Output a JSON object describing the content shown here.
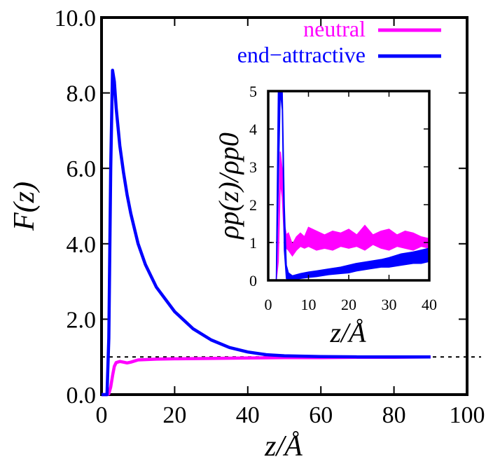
{
  "chart_data": [
    {
      "type": "line",
      "xlabel": "z/Å",
      "ylabel": "F(z)",
      "xlim": [
        0,
        100
      ],
      "ylim": [
        0,
        10
      ],
      "x_ticks": [
        "0",
        "20",
        "40",
        "60",
        "80",
        "100"
      ],
      "y_ticks": [
        "0.0",
        "2.0",
        "4.0",
        "6.0",
        "8.0",
        "10.0"
      ],
      "x_tick_values": [
        0,
        20,
        40,
        60,
        80,
        100
      ],
      "y_tick_values": [
        0,
        2,
        4,
        6,
        8,
        10
      ],
      "reference_line": {
        "y": 1,
        "style": "dashed",
        "color": "#000000"
      },
      "legend_position": "top-right",
      "series": [
        {
          "name": "neutral",
          "color": "#ff00ff",
          "x": [
            0,
            1.5,
            2.0,
            2.5,
            3.0,
            3.5,
            4.0,
            5.0,
            6.0,
            7.0,
            8.0,
            10.0,
            15.0,
            20.0,
            30.0,
            40.0,
            50.0,
            60.0,
            70.0,
            80.0,
            90.0
          ],
          "y": [
            0,
            0,
            0.02,
            0.2,
            0.5,
            0.75,
            0.85,
            0.88,
            0.86,
            0.84,
            0.86,
            0.92,
            0.94,
            0.95,
            0.96,
            0.97,
            0.98,
            0.98,
            0.99,
            0.99,
            1.0
          ]
        },
        {
          "name": "end−attractive",
          "color": "#0000ff",
          "x": [
            0,
            1.5,
            2.0,
            2.5,
            3.0,
            3.5,
            4.0,
            5.0,
            6.0,
            7.0,
            8.0,
            10.0,
            12.0,
            15.0,
            20.0,
            25.0,
            30.0,
            35.0,
            40.0,
            45.0,
            50.0,
            60.0,
            70.0,
            80.0,
            90.0
          ],
          "y": [
            0,
            0,
            1.5,
            6.0,
            8.6,
            8.3,
            7.6,
            6.6,
            5.9,
            5.3,
            4.8,
            4.0,
            3.45,
            2.85,
            2.2,
            1.75,
            1.45,
            1.25,
            1.13,
            1.06,
            1.03,
            1.01,
            1.0,
            1.0,
            1.0
          ]
        }
      ]
    },
    {
      "type": "area",
      "xlabel": "z/Å",
      "ylabel": "ρp(z)/ρp0",
      "xlim": [
        0,
        40
      ],
      "ylim": [
        0,
        5
      ],
      "x_ticks": [
        "0",
        "10",
        "20",
        "30",
        "40"
      ],
      "y_ticks": [
        "0",
        "1",
        "2",
        "3",
        "4",
        "5"
      ],
      "x_tick_values": [
        0,
        10,
        20,
        30,
        40
      ],
      "y_tick_values": [
        0,
        1,
        2,
        3,
        4,
        5
      ],
      "reference_line": {
        "y": 1,
        "style": "dashed",
        "color": "#000000"
      },
      "series": [
        {
          "name": "neutral",
          "color": "#ff00ff",
          "x": [
            0,
            2.0,
            2.5,
            3.0,
            3.5,
            4.0,
            4.5,
            5.0,
            6.0,
            7.0,
            8.0,
            9.0,
            10.0,
            12.0,
            14.0,
            16.0,
            18.0,
            20.0,
            22.0,
            24.0,
            26.0,
            28.0,
            30.0,
            32.0,
            34.0,
            36.0,
            38.0,
            40.0
          ],
          "y_low": [
            0,
            0,
            0.5,
            2.6,
            2.2,
            1.1,
            0.85,
            0.8,
            0.65,
            0.8,
            0.9,
            0.85,
            0.9,
            0.8,
            0.85,
            0.8,
            0.9,
            0.85,
            0.9,
            0.8,
            0.95,
            0.85,
            0.8,
            0.9,
            0.85,
            0.8,
            0.9,
            0.85
          ],
          "y_high": [
            0,
            0,
            1.2,
            3.4,
            2.9,
            1.5,
            1.2,
            1.25,
            0.95,
            1.15,
            1.25,
            1.15,
            1.4,
            1.3,
            1.2,
            1.3,
            1.25,
            1.35,
            1.2,
            1.45,
            1.2,
            1.3,
            1.35,
            1.2,
            1.3,
            1.25,
            1.15,
            1.1
          ]
        },
        {
          "name": "end−attractive",
          "color": "#0000ff",
          "x": [
            0,
            2.0,
            2.5,
            3.0,
            3.5,
            4.0,
            4.5,
            5.0,
            6.0,
            8.0,
            10.0,
            12.0,
            15.0,
            18.0,
            20.0,
            22.0,
            25.0,
            28.0,
            30.0,
            33.0,
            36.0,
            38.0,
            40.0
          ],
          "y_low": [
            0,
            0,
            2.5,
            5.0,
            4.5,
            0.8,
            0.05,
            0.0,
            0.0,
            0.05,
            0.08,
            0.1,
            0.15,
            0.18,
            0.2,
            0.25,
            0.3,
            0.35,
            0.35,
            0.4,
            0.45,
            0.45,
            0.5
          ],
          "y_high": [
            0,
            0,
            5.0,
            5.0,
            5.0,
            2.0,
            0.4,
            0.2,
            0.12,
            0.18,
            0.22,
            0.25,
            0.3,
            0.35,
            0.4,
            0.45,
            0.5,
            0.55,
            0.6,
            0.7,
            0.75,
            0.8,
            0.85
          ]
        }
      ]
    }
  ]
}
